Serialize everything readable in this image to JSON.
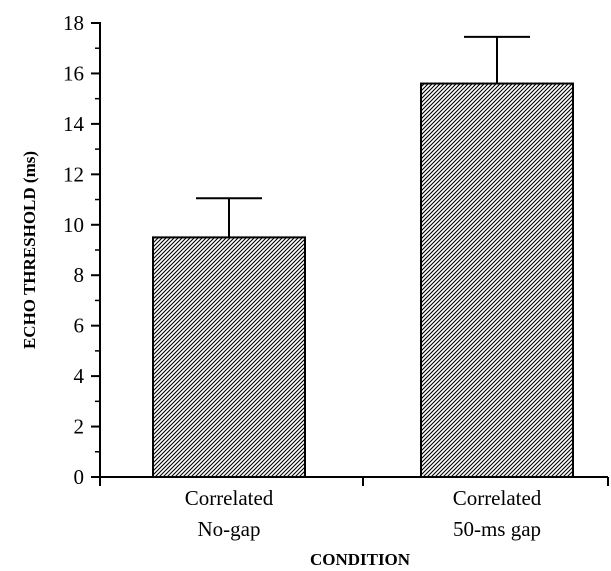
{
  "chart_data": {
    "type": "bar",
    "categories": [
      [
        "Correlated",
        "No-gap"
      ],
      [
        "Correlated",
        "50-ms gap"
      ]
    ],
    "values": [
      9.5,
      15.6
    ],
    "error_bars": [
      1.55,
      1.85
    ],
    "xlabel": "CONDITION",
    "ylabel": "ECHO THRESHOLD (ms)",
    "ylim": [
      0,
      18
    ],
    "yticks": [
      0,
      2,
      4,
      6,
      8,
      10,
      12,
      14,
      16,
      18
    ],
    "grid": false,
    "legend": "none",
    "bar_fill": "diagonal-hatch",
    "colors": {
      "ink": "#000000",
      "background": "#ffffff"
    }
  }
}
